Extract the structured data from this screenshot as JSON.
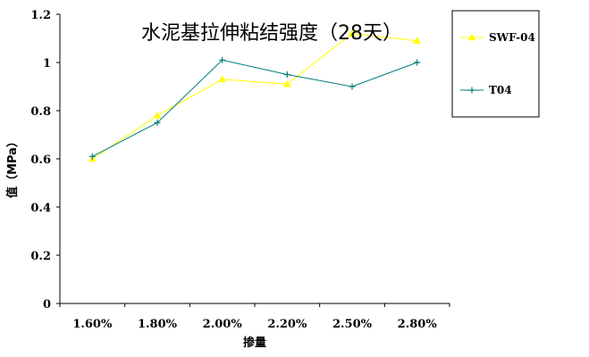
{
  "colors": {
    "swf04": "#ffff00",
    "t04": "#007b7b",
    "axis": "#000000",
    "background": "#ffffff"
  },
  "chart_data": {
    "type": "line",
    "title": "水泥基拉伸粘结强度（28天）",
    "xlabel": "掺量",
    "ylabel": "值（MPa）",
    "categories": [
      "1.60%",
      "1.80%",
      "2.00%",
      "2.20%",
      "2.50%",
      "2.80%"
    ],
    "ylim": [
      0,
      1.2
    ],
    "yticks": [
      0,
      0.2,
      0.4,
      0.6,
      0.8,
      1,
      1.2
    ],
    "ytick_labels": [
      "0",
      "0.2",
      "0.4",
      "0.6",
      "0.8",
      "1",
      "1.2"
    ],
    "grid": false,
    "legend_position": "right",
    "series": [
      {
        "name": "SWF-04",
        "values": [
          0.6,
          0.78,
          0.93,
          0.91,
          1.12,
          1.09
        ],
        "marker": "triangle",
        "color": "#ffff00"
      },
      {
        "name": "T04",
        "values": [
          0.61,
          0.75,
          1.01,
          0.95,
          0.9,
          1.0
        ],
        "marker": "plus",
        "color": "#007b7b"
      }
    ]
  }
}
